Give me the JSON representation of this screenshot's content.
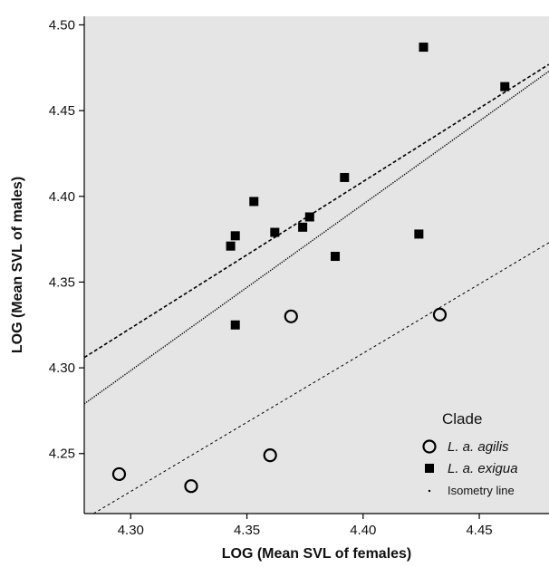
{
  "chart_data": {
    "type": "scatter",
    "xlabel": "LOG (Mean SVL of females)",
    "ylabel": "LOG (Mean SVL of males)",
    "xlim": [
      4.28,
      4.48
    ],
    "ylim": [
      4.215,
      4.505
    ],
    "xticks": [
      "4.30",
      "4.35",
      "4.40",
      "4.45"
    ],
    "yticks": [
      "4.25",
      "4.30",
      "4.35",
      "4.40",
      "4.45",
      "4.50"
    ],
    "grid": false,
    "legend_position": "bottom-right",
    "colors": {
      "plot_background": "#e5e5e5",
      "markers": "#000000",
      "axis": "#000000"
    },
    "legend": {
      "title": "Clade",
      "entries": [
        {
          "label": "L. a. agilis",
          "marker": "open-circle",
          "italic": true
        },
        {
          "label": "L. a. exigua",
          "marker": "filled-square",
          "italic": true
        },
        {
          "label": "Isometry line",
          "marker": "dot",
          "italic": false
        }
      ]
    },
    "series": [
      {
        "name": "L. a. agilis",
        "marker": "open-circle",
        "points": [
          {
            "x": 4.295,
            "y": 4.238
          },
          {
            "x": 4.326,
            "y": 4.231
          },
          {
            "x": 4.36,
            "y": 4.249
          },
          {
            "x": 4.369,
            "y": 4.33
          },
          {
            "x": 4.433,
            "y": 4.331
          }
        ]
      },
      {
        "name": "L. a. exigua",
        "marker": "filled-square",
        "points": [
          {
            "x": 4.343,
            "y": 4.371
          },
          {
            "x": 4.345,
            "y": 4.377
          },
          {
            "x": 4.345,
            "y": 4.325
          },
          {
            "x": 4.353,
            "y": 4.397
          },
          {
            "x": 4.362,
            "y": 4.379
          },
          {
            "x": 4.374,
            "y": 4.382
          },
          {
            "x": 4.377,
            "y": 4.388
          },
          {
            "x": 4.388,
            "y": 4.365
          },
          {
            "x": 4.392,
            "y": 4.411
          },
          {
            "x": 4.424,
            "y": 4.378
          },
          {
            "x": 4.426,
            "y": 4.487
          },
          {
            "x": 4.461,
            "y": 4.464
          }
        ]
      }
    ],
    "lines": [
      {
        "label": "L. a. exigua",
        "style": "dashed",
        "points": [
          [
            4.28,
            4.306
          ],
          [
            4.48,
            4.477
          ]
        ]
      },
      {
        "label": "Isometry line",
        "style": "dotted",
        "points": [
          [
            4.28,
            4.279
          ],
          [
            4.48,
            4.473
          ]
        ]
      },
      {
        "label": "L. a. agilis",
        "style": "fine-dashed",
        "points": [
          [
            4.284,
            4.215
          ],
          [
            4.48,
            4.373
          ]
        ]
      }
    ]
  }
}
